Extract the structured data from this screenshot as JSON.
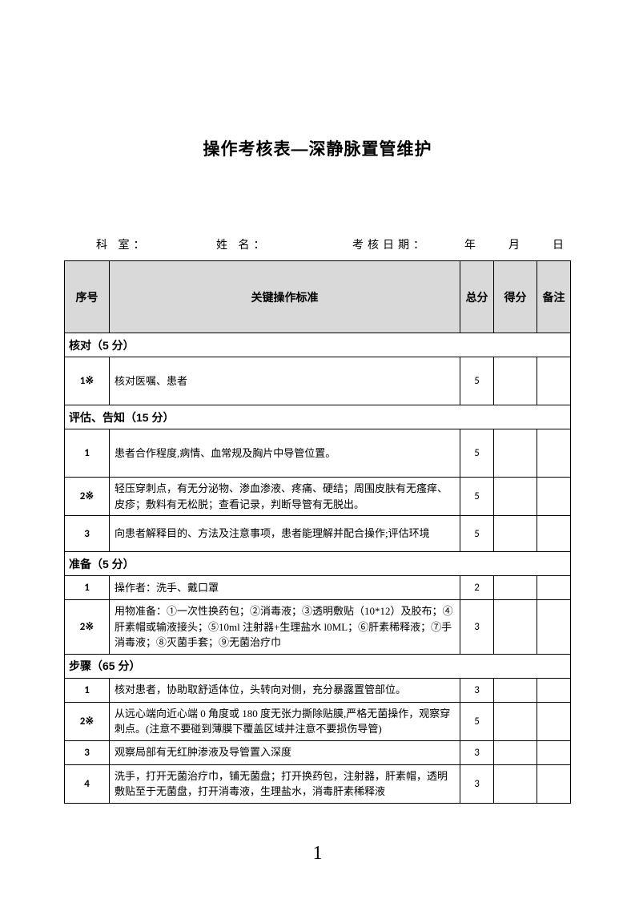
{
  "title": "操作考核表—深静脉置管维护",
  "fields": {
    "dept": "科 室：",
    "name": "姓 名：",
    "examDate": "考核日期：",
    "year": "年",
    "month": "月",
    "day": "日"
  },
  "headers": {
    "seq": "序号",
    "criteria": "关键操作标准",
    "total": "总分",
    "score": "得分",
    "note": "备注"
  },
  "sections": [
    {
      "title": "核对（5 分）",
      "rows": [
        {
          "seq": "1※",
          "criteria": "核对医嘱、患者",
          "total": "5",
          "height": "tall"
        }
      ]
    },
    {
      "title": "评估、告知（15 分）",
      "rows": [
        {
          "seq": "1",
          "criteria": "患者合作程度,病情、血常规及胸片中导管位置。",
          "total": "5",
          "height": "tall"
        },
        {
          "seq": "2※",
          "criteria": "轻压穿刺点，有无分泌物、渗血渗液、疼痛、硬结；周围皮肤有无瘙痒、皮疹；敷料有无松脱；查看记录，判断导管有无脱出。",
          "total": "5",
          "height": "med"
        },
        {
          "seq": "3",
          "criteria": "向患者解释目的、方法及注意事项，患者能理解并配合操作;评估环境",
          "total": "5",
          "height": "med"
        }
      ]
    },
    {
      "title": "准备（5 分）",
      "rows": [
        {
          "seq": "1",
          "criteria": "操作者：洗手、戴口罩",
          "total": "2",
          "height": "short"
        },
        {
          "seq": "2※",
          "criteria": "用物准备：①一次性换药包；②消毒液；③透明敷贴（10*12）及胶布；④肝素帽或输液接头；⑤10ml 注射器+生理盐水 l0ML；⑥肝素稀释液；⑦手消毒液；⑧灭菌手套；⑨无菌治疗巾",
          "total": "3",
          "height": "med"
        }
      ]
    },
    {
      "title": "步骤（65 分）",
      "rows": [
        {
          "seq": "1",
          "criteria": "核对患者，协助取舒适体位，头转向对侧，充分暴露置管部位。",
          "total": "3",
          "height": "short"
        },
        {
          "seq": "2※",
          "criteria": "从远心端向近心端 0 角度或 180 度无张力撕除贴膜,严格无菌操作，观察穿刺点。(注意不要碰到薄膜下覆盖区域并注意不要损伤导管)",
          "total": "5",
          "height": "med"
        },
        {
          "seq": "3",
          "criteria": "观察局部有无红肿渗液及导管置入深度",
          "total": "3",
          "height": "short"
        },
        {
          "seq": "4",
          "criteria": "洗手，打开无菌治疗巾，铺无菌盘；打开换药包，注射器，肝素帽，透明敷贴至于无菌盘，打开消毒液，生理盐水，消毒肝素稀释液",
          "total": "3",
          "height": "med"
        }
      ]
    }
  ],
  "pageNumber": "1"
}
